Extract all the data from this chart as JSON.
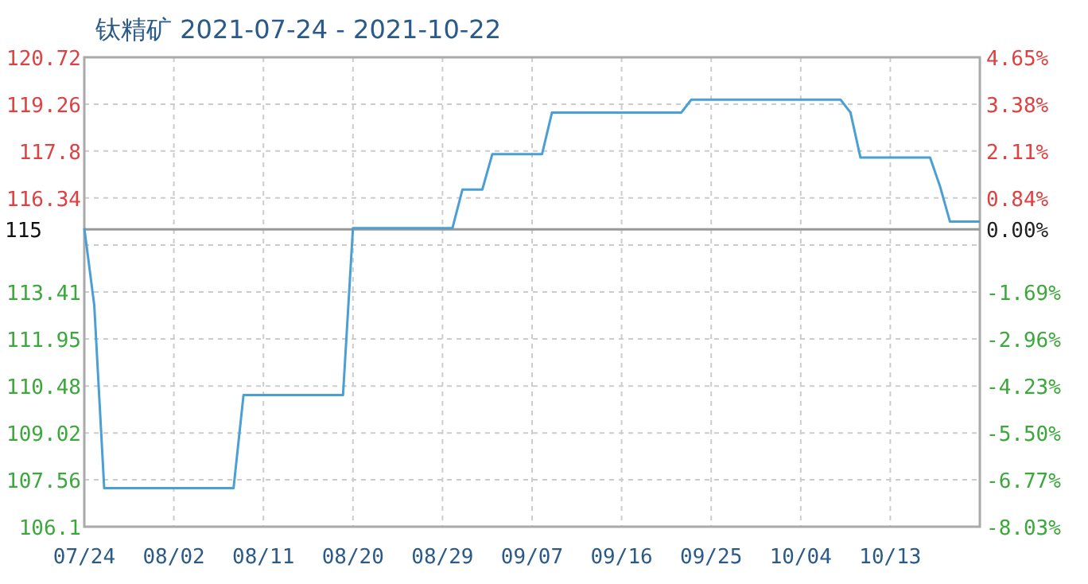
{
  "chart_data": {
    "type": "line",
    "title": "钛精矿 2021-07-24 - 2021-10-22",
    "x": [
      "2021-07-24",
      "2021-07-25",
      "2021-07-26",
      "2021-08-08",
      "2021-08-09",
      "2021-08-19",
      "2021-08-20",
      "2021-08-30",
      "2021-08-31",
      "2021-09-02",
      "2021-09-03",
      "2021-09-08",
      "2021-09-09",
      "2021-09-22",
      "2021-09-23",
      "2021-10-08",
      "2021-10-09",
      "2021-10-10",
      "2021-10-17",
      "2021-10-18",
      "2021-10-19",
      "2021-10-22"
    ],
    "series": [
      {
        "color": "#4a9fd4",
        "values": [
          115.4,
          113.0,
          107.3,
          107.3,
          110.2,
          110.2,
          115.4,
          115.4,
          116.6,
          116.6,
          117.7,
          117.7,
          119.0,
          119.0,
          119.4,
          119.4,
          119.0,
          117.6,
          117.6,
          116.7,
          115.6,
          115.6
        ]
      }
    ],
    "xlim": [
      "2021-07-24",
      "2021-10-22"
    ],
    "xticks": [
      {
        "value": "2021-07-24",
        "label": "07/24"
      },
      {
        "value": "2021-08-02",
        "label": "08/02"
      },
      {
        "value": "2021-08-11",
        "label": "08/11"
      },
      {
        "value": "2021-08-20",
        "label": "08/20"
      },
      {
        "value": "2021-08-29",
        "label": "08/29"
      },
      {
        "value": "2021-09-07",
        "label": "09/07"
      },
      {
        "value": "2021-09-16",
        "label": "09/16"
      },
      {
        "value": "2021-09-25",
        "label": "09/25"
      },
      {
        "value": "2021-10-04",
        "label": "10/04"
      },
      {
        "value": "2021-10-13",
        "label": "10/13"
      }
    ],
    "ylim": [
      106.1,
      120.72
    ],
    "yticks": [
      106.1,
      107.56,
      109.02,
      110.48,
      111.95,
      113.41,
      {
        "value": 114.87,
        "label": null
      },
      116.34,
      117.8,
      119.26,
      120.72
    ],
    "y2lim": [
      -8.03,
      4.65
    ],
    "y2ticks": [
      {
        "value": -8.03,
        "label": "-8.03%"
      },
      {
        "value": -6.77,
        "label": "-6.77%"
      },
      {
        "value": -5.5,
        "label": "-5.50%"
      },
      {
        "value": -4.23,
        "label": "-4.23%"
      },
      {
        "value": -2.96,
        "label": "-2.96%"
      },
      {
        "value": -1.69,
        "label": "-1.69%"
      },
      {
        "value": 0,
        "label": "0.00%"
      },
      {
        "value": 0.84,
        "label": "0.84%"
      },
      {
        "value": 2.11,
        "label": "2.11%"
      },
      {
        "value": 3.38,
        "label": "3.38%"
      },
      {
        "value": 4.65,
        "label": "4.65%"
      }
    ],
    "ref_lines": [
      {
        "axis": "y",
        "value": 115.36,
        "label": "115",
        "color": "#999999"
      }
    ],
    "grid": true,
    "marker": "none",
    "line_style": "solid"
  }
}
